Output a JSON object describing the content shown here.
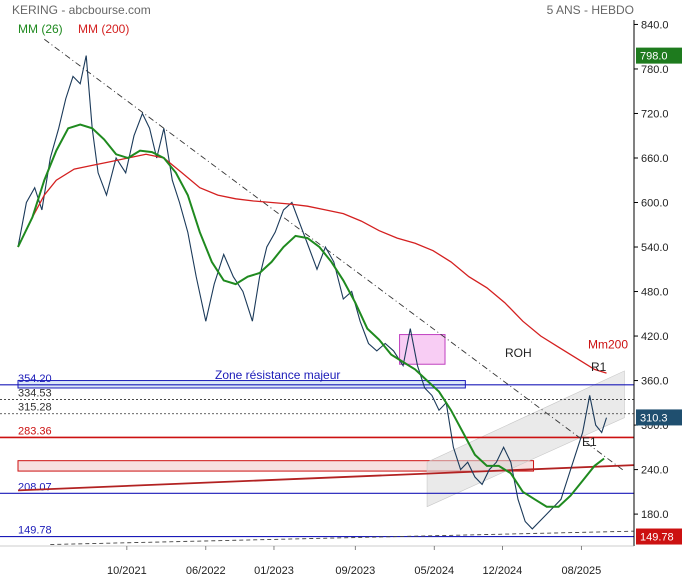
{
  "chart_data": {
    "type": "line",
    "title": "KERING - abcbourse.com",
    "period_label": "5 ANS - HEBDO",
    "x_labels": [
      {
        "label": "10/2021",
        "t": 2021.79
      },
      {
        "label": "06/2022",
        "t": 2022.45
      },
      {
        "label": "01/2023",
        "t": 2023.02
      },
      {
        "label": "09/2023",
        "t": 2023.7
      },
      {
        "label": "05/2024",
        "t": 2024.36
      },
      {
        "label": "12/2024",
        "t": 2024.93
      },
      {
        "label": "08/2025",
        "t": 2025.59
      }
    ],
    "y_ticks": [
      180.0,
      240.0,
      300.0,
      360.0,
      420.0,
      480.0,
      540.0,
      600.0,
      660.0,
      720.0,
      780.0,
      840.0
    ],
    "ylim": [
      137,
      846
    ],
    "xlim": [
      2020.88,
      2026.03
    ],
    "price_badges": [
      {
        "value": 798.0,
        "label": "798.0",
        "color": "#1e7b1e"
      },
      {
        "value": 310.3,
        "label": "310.3",
        "color": "#1f4f6f"
      },
      {
        "value": 149.78,
        "label": "149.78",
        "color": "#cc1111"
      }
    ],
    "legend": [
      {
        "label": "MM (26)",
        "color": "#1f8a1f"
      },
      {
        "label": "MM (200)",
        "color": "#d42020"
      }
    ],
    "levels": [
      {
        "value": 354.2,
        "label": "354.20",
        "style": "blue-solid",
        "color": "#1a1ab8"
      },
      {
        "value": 334.53,
        "label": "334.53",
        "style": "dashed",
        "color": "#333333"
      },
      {
        "value": 315.28,
        "label": "315.28",
        "style": "dashed",
        "color": "#333333"
      },
      {
        "value": 283.36,
        "label": "283.36",
        "style": "red-solid",
        "color": "#cc1111"
      },
      {
        "value": 208.07,
        "label": "208.07",
        "style": "blue-solid",
        "color": "#1a1ab8"
      },
      {
        "value": 149.78,
        "label": "149.78",
        "style": "blue-solid",
        "color": "#1a1ab8"
      }
    ],
    "annotations": [
      {
        "text": "Zone résistance majeur",
        "color": "#1a1ab8"
      },
      {
        "text": "ROH",
        "color": "#222222"
      },
      {
        "text": "R1",
        "color": "#222222"
      },
      {
        "text": "E1",
        "color": "#222222"
      },
      {
        "text": "Mm200",
        "color": "#cc1111"
      }
    ],
    "price_series": [
      {
        "t": 2020.88,
        "v": 540
      },
      {
        "t": 2020.95,
        "v": 600
      },
      {
        "t": 2021.02,
        "v": 620
      },
      {
        "t": 2021.08,
        "v": 590
      },
      {
        "t": 2021.15,
        "v": 660
      },
      {
        "t": 2021.22,
        "v": 700
      },
      {
        "t": 2021.28,
        "v": 740
      },
      {
        "t": 2021.34,
        "v": 770
      },
      {
        "t": 2021.4,
        "v": 760
      },
      {
        "t": 2021.45,
        "v": 798
      },
      {
        "t": 2021.5,
        "v": 700
      },
      {
        "t": 2021.55,
        "v": 640
      },
      {
        "t": 2021.62,
        "v": 610
      },
      {
        "t": 2021.7,
        "v": 660
      },
      {
        "t": 2021.78,
        "v": 640
      },
      {
        "t": 2021.85,
        "v": 690
      },
      {
        "t": 2021.92,
        "v": 720
      },
      {
        "t": 2021.98,
        "v": 700
      },
      {
        "t": 2022.04,
        "v": 660
      },
      {
        "t": 2022.1,
        "v": 700
      },
      {
        "t": 2022.17,
        "v": 630
      },
      {
        "t": 2022.23,
        "v": 600
      },
      {
        "t": 2022.3,
        "v": 560
      },
      {
        "t": 2022.37,
        "v": 500
      },
      {
        "t": 2022.45,
        "v": 440
      },
      {
        "t": 2022.52,
        "v": 490
      },
      {
        "t": 2022.6,
        "v": 530
      },
      {
        "t": 2022.68,
        "v": 500
      },
      {
        "t": 2022.76,
        "v": 480
      },
      {
        "t": 2022.84,
        "v": 440
      },
      {
        "t": 2022.9,
        "v": 500
      },
      {
        "t": 2022.96,
        "v": 540
      },
      {
        "t": 2023.03,
        "v": 560
      },
      {
        "t": 2023.1,
        "v": 590
      },
      {
        "t": 2023.17,
        "v": 600
      },
      {
        "t": 2023.24,
        "v": 570
      },
      {
        "t": 2023.31,
        "v": 540
      },
      {
        "t": 2023.38,
        "v": 510
      },
      {
        "t": 2023.45,
        "v": 540
      },
      {
        "t": 2023.52,
        "v": 520
      },
      {
        "t": 2023.6,
        "v": 470
      },
      {
        "t": 2023.67,
        "v": 480
      },
      {
        "t": 2023.74,
        "v": 440
      },
      {
        "t": 2023.81,
        "v": 410
      },
      {
        "t": 2023.88,
        "v": 400
      },
      {
        "t": 2023.95,
        "v": 410
      },
      {
        "t": 2024.02,
        "v": 400
      },
      {
        "t": 2024.1,
        "v": 380
      },
      {
        "t": 2024.16,
        "v": 430
      },
      {
        "t": 2024.22,
        "v": 380
      },
      {
        "t": 2024.28,
        "v": 350
      },
      {
        "t": 2024.34,
        "v": 340
      },
      {
        "t": 2024.4,
        "v": 320
      },
      {
        "t": 2024.46,
        "v": 330
      },
      {
        "t": 2024.52,
        "v": 270
      },
      {
        "t": 2024.58,
        "v": 240
      },
      {
        "t": 2024.64,
        "v": 250
      },
      {
        "t": 2024.7,
        "v": 230
      },
      {
        "t": 2024.76,
        "v": 220
      },
      {
        "t": 2024.82,
        "v": 240
      },
      {
        "t": 2024.88,
        "v": 250
      },
      {
        "t": 2024.94,
        "v": 270
      },
      {
        "t": 2025.0,
        "v": 250
      },
      {
        "t": 2025.06,
        "v": 200
      },
      {
        "t": 2025.12,
        "v": 170
      },
      {
        "t": 2025.18,
        "v": 160
      },
      {
        "t": 2025.24,
        "v": 170
      },
      {
        "t": 2025.3,
        "v": 180
      },
      {
        "t": 2025.36,
        "v": 190
      },
      {
        "t": 2025.42,
        "v": 200
      },
      {
        "t": 2025.48,
        "v": 230
      },
      {
        "t": 2025.54,
        "v": 260
      },
      {
        "t": 2025.6,
        "v": 290
      },
      {
        "t": 2025.66,
        "v": 340
      },
      {
        "t": 2025.71,
        "v": 300
      },
      {
        "t": 2025.76,
        "v": 290
      },
      {
        "t": 2025.8,
        "v": 310
      }
    ],
    "mm26_series": [
      {
        "t": 2020.88,
        "v": 540
      },
      {
        "t": 2021.0,
        "v": 580
      },
      {
        "t": 2021.1,
        "v": 630
      },
      {
        "t": 2021.2,
        "v": 670
      },
      {
        "t": 2021.3,
        "v": 700
      },
      {
        "t": 2021.4,
        "v": 705
      },
      {
        "t": 2021.5,
        "v": 700
      },
      {
        "t": 2021.6,
        "v": 685
      },
      {
        "t": 2021.7,
        "v": 665
      },
      {
        "t": 2021.8,
        "v": 660
      },
      {
        "t": 2021.9,
        "v": 670
      },
      {
        "t": 2022.0,
        "v": 668
      },
      {
        "t": 2022.1,
        "v": 660
      },
      {
        "t": 2022.2,
        "v": 640
      },
      {
        "t": 2022.3,
        "v": 610
      },
      {
        "t": 2022.4,
        "v": 560
      },
      {
        "t": 2022.5,
        "v": 520
      },
      {
        "t": 2022.6,
        "v": 495
      },
      {
        "t": 2022.7,
        "v": 490
      },
      {
        "t": 2022.8,
        "v": 500
      },
      {
        "t": 2022.9,
        "v": 505
      },
      {
        "t": 2023.0,
        "v": 520
      },
      {
        "t": 2023.1,
        "v": 540
      },
      {
        "t": 2023.2,
        "v": 555
      },
      {
        "t": 2023.3,
        "v": 552
      },
      {
        "t": 2023.4,
        "v": 540
      },
      {
        "t": 2023.5,
        "v": 520
      },
      {
        "t": 2023.6,
        "v": 495
      },
      {
        "t": 2023.7,
        "v": 465
      },
      {
        "t": 2023.8,
        "v": 430
      },
      {
        "t": 2023.9,
        "v": 415
      },
      {
        "t": 2024.0,
        "v": 395
      },
      {
        "t": 2024.1,
        "v": 385
      },
      {
        "t": 2024.2,
        "v": 375
      },
      {
        "t": 2024.3,
        "v": 360
      },
      {
        "t": 2024.4,
        "v": 345
      },
      {
        "t": 2024.5,
        "v": 320
      },
      {
        "t": 2024.6,
        "v": 290
      },
      {
        "t": 2024.7,
        "v": 260
      },
      {
        "t": 2024.8,
        "v": 245
      },
      {
        "t": 2024.9,
        "v": 245
      },
      {
        "t": 2025.0,
        "v": 235
      },
      {
        "t": 2025.1,
        "v": 210
      },
      {
        "t": 2025.2,
        "v": 200
      },
      {
        "t": 2025.3,
        "v": 190
      },
      {
        "t": 2025.4,
        "v": 190
      },
      {
        "t": 2025.5,
        "v": 205
      },
      {
        "t": 2025.6,
        "v": 225
      },
      {
        "t": 2025.7,
        "v": 245
      },
      {
        "t": 2025.78,
        "v": 255
      }
    ],
    "mm200_series": [
      {
        "t": 2020.88,
        "v": 540
      },
      {
        "t": 2021.0,
        "v": 580
      },
      {
        "t": 2021.1,
        "v": 610
      },
      {
        "t": 2021.2,
        "v": 630
      },
      {
        "t": 2021.35,
        "v": 645
      },
      {
        "t": 2021.5,
        "v": 650
      },
      {
        "t": 2021.65,
        "v": 655
      },
      {
        "t": 2021.8,
        "v": 660
      },
      {
        "t": 2021.95,
        "v": 665
      },
      {
        "t": 2022.1,
        "v": 660
      },
      {
        "t": 2022.25,
        "v": 640
      },
      {
        "t": 2022.4,
        "v": 620
      },
      {
        "t": 2022.55,
        "v": 610
      },
      {
        "t": 2022.7,
        "v": 605
      },
      {
        "t": 2022.85,
        "v": 602
      },
      {
        "t": 2023.0,
        "v": 600
      },
      {
        "t": 2023.15,
        "v": 598
      },
      {
        "t": 2023.3,
        "v": 595
      },
      {
        "t": 2023.45,
        "v": 590
      },
      {
        "t": 2023.6,
        "v": 585
      },
      {
        "t": 2023.75,
        "v": 575
      },
      {
        "t": 2023.9,
        "v": 562
      },
      {
        "t": 2024.05,
        "v": 552
      },
      {
        "t": 2024.2,
        "v": 545
      },
      {
        "t": 2024.35,
        "v": 535
      },
      {
        "t": 2024.5,
        "v": 520
      },
      {
        "t": 2024.65,
        "v": 500
      },
      {
        "t": 2024.8,
        "v": 485
      },
      {
        "t": 2024.95,
        "v": 465
      },
      {
        "t": 2025.1,
        "v": 440
      },
      {
        "t": 2025.25,
        "v": 420
      },
      {
        "t": 2025.4,
        "v": 405
      },
      {
        "t": 2025.55,
        "v": 390
      },
      {
        "t": 2025.7,
        "v": 375
      },
      {
        "t": 2025.8,
        "v": 370
      }
    ],
    "trendlines": [
      {
        "name": "roh-line",
        "style": "dash-dot",
        "color": "#333333",
        "from": {
          "t": 2021.1,
          "v": 820
        },
        "to": {
          "t": 2025.95,
          "v": 238
        }
      },
      {
        "name": "red-support-line",
        "style": "solid",
        "color": "#b22222",
        "from": {
          "t": 2020.88,
          "v": 212
        },
        "to": {
          "t": 2026.03,
          "v": 246
        }
      },
      {
        "name": "bottom-dashed-line",
        "style": "dashed",
        "color": "#444444",
        "from": {
          "t": 2021.15,
          "v": 139
        },
        "to": {
          "t": 2026.03,
          "v": 157
        }
      }
    ],
    "channel": {
      "color": "#d8d8d8",
      "lower_from": {
        "t": 2024.3,
        "v": 190
      },
      "lower_to": {
        "t": 2025.95,
        "v": 310
      },
      "upper_from": {
        "t": 2024.3,
        "v": 250
      },
      "upper_to": {
        "t": 2025.95,
        "v": 373
      }
    },
    "zones": [
      {
        "name": "resistance-zone",
        "t0": 2020.88,
        "t1": 2024.62,
        "v0": 350,
        "v1": 360,
        "fill": "#d6e4f7",
        "stroke": "#1a1ab8"
      },
      {
        "name": "magenta-zone",
        "t0": 2024.07,
        "t1": 2024.45,
        "v0": 382,
        "v1": 422,
        "fill": "#f7c4f2",
        "stroke": "#c040c0"
      },
      {
        "name": "support-zone",
        "t0": 2020.88,
        "t1": 2025.19,
        "v0": 238,
        "v1": 252,
        "fill": "#f6dada",
        "stroke": "#cc1111"
      }
    ]
  }
}
